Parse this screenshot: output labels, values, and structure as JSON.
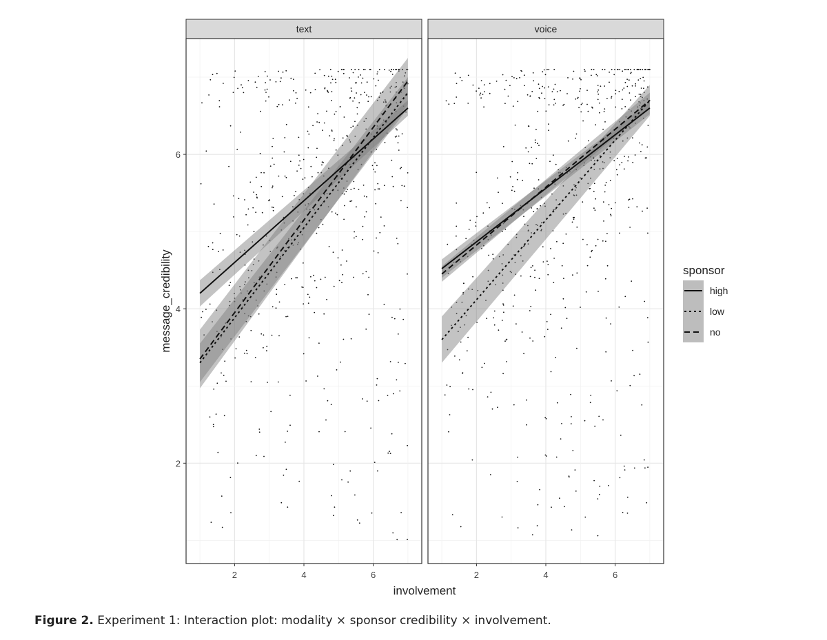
{
  "caption": {
    "label": "Figure 2.",
    "text": "Experiment 1: Interaction plot: modality × sponsor credibility × involvement."
  },
  "chart_data": {
    "type": "scatter",
    "xlabel": "involvement",
    "ylabel": "message_credibility",
    "xlim": [
      0.6,
      7.4
    ],
    "ylim": [
      0.7,
      7.5
    ],
    "x_ticks": [
      2,
      4,
      6
    ],
    "y_ticks": [
      2,
      4,
      6
    ],
    "grid": true,
    "legend": {
      "title": "sponsor",
      "position": "right",
      "entries": [
        "high",
        "low",
        "no"
      ]
    },
    "panels": [
      {
        "title": "text",
        "fits": [
          {
            "name": "high",
            "x": [
              1,
              7
            ],
            "y": [
              4.2,
              6.6
            ],
            "ci_low": [
              0.17,
              0.1
            ],
            "ci_high": [
              0.17,
              0.1
            ]
          },
          {
            "name": "low",
            "x": [
              1,
              7
            ],
            "y": [
              3.3,
              6.8
            ],
            "ci_low": [
              0.25,
              0.2
            ],
            "ci_high": [
              0.25,
              0.2
            ]
          },
          {
            "name": "no",
            "x": [
              1,
              7
            ],
            "y": [
              3.35,
              6.95
            ],
            "ci_low": [
              0.38,
              0.3
            ],
            "ci_high": [
              0.38,
              0.3
            ]
          }
        ]
      },
      {
        "title": "voice",
        "fits": [
          {
            "name": "high",
            "x": [
              1,
              7
            ],
            "y": [
              4.52,
              6.6
            ],
            "ci_low": [
              0.12,
              0.08
            ],
            "ci_high": [
              0.12,
              0.08
            ]
          },
          {
            "name": "low",
            "x": [
              1,
              7
            ],
            "y": [
              3.6,
              6.7
            ],
            "ci_low": [
              0.3,
              0.2
            ],
            "ci_high": [
              0.3,
              0.2
            ]
          },
          {
            "name": "no",
            "x": [
              1,
              7
            ],
            "y": [
              4.45,
              6.7
            ],
            "ci_low": [
              0.1,
              0.1
            ],
            "ci_high": [
              0.1,
              0.1
            ]
          }
        ]
      }
    ]
  }
}
